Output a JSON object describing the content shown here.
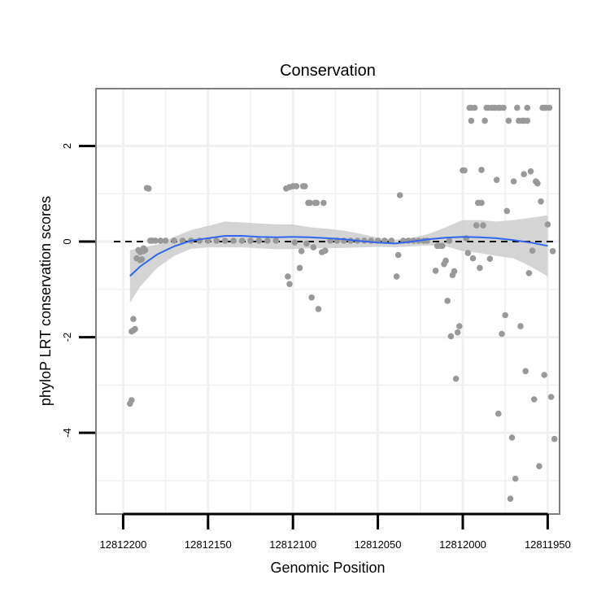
{
  "chart_data": {
    "type": "scatter",
    "title": "Conservation",
    "xlabel": "Genomic Position",
    "ylabel": "phyloP LRT conservation scores",
    "xlim": [
      12812216,
      12811943
    ],
    "ylim": [
      -5.7,
      3.2
    ],
    "x_reversed": true,
    "x_ticks": [
      12812200,
      12812150,
      12812100,
      12812050,
      12812000,
      12811950
    ],
    "x_tick_labels": [
      "12812200",
      "12812150",
      "12812100",
      "12812050",
      "12812000",
      "12811950"
    ],
    "y_ticks": [
      -4,
      -2,
      0,
      2
    ],
    "y_tick_labels": [
      "-4",
      "-2",
      "0",
      "2"
    ],
    "x_minor_grid": [
      12812175,
      12812125,
      12812075,
      12812025,
      12811975
    ],
    "y_minor_grid": [
      -5,
      -3,
      -1,
      1
    ],
    "reference_line": {
      "y": 0,
      "style": "dashed"
    },
    "point_color": "#999999",
    "smooth_color": "#3366ee",
    "ribbon_color": "#cccccc",
    "grid_color": "#f0f0f0",
    "frame_color": "#7f7f7f",
    "series": [
      {
        "name": "phyloP scores",
        "points": [
          [
            12812196,
            -3.39
          ],
          [
            12812195,
            -3.32
          ],
          [
            12812195,
            -1.88
          ],
          [
            12812194,
            -1.62
          ],
          [
            12812194,
            -1.86
          ],
          [
            12812193,
            -1.83
          ],
          [
            12812192,
            -0.35
          ],
          [
            12812191,
            -0.18
          ],
          [
            12812190,
            -0.39
          ],
          [
            12812190,
            -0.22
          ],
          [
            12812189,
            -0.37
          ],
          [
            12812188,
            -0.14
          ],
          [
            12812188,
            -0.2
          ],
          [
            12812187,
            -0.18
          ],
          [
            12812186,
            1.12
          ],
          [
            12812185,
            1.11
          ],
          [
            12812184,
            0.02
          ],
          [
            12812183,
            0.02
          ],
          [
            12812181,
            0.02
          ],
          [
            12812178,
            0.02
          ],
          [
            12812175,
            0.02
          ],
          [
            12812170,
            0.02
          ],
          [
            12812165,
            0.02
          ],
          [
            12812160,
            0.02
          ],
          [
            12812155,
            0.02
          ],
          [
            12812150,
            0.02
          ],
          [
            12812145,
            0.02
          ],
          [
            12812140,
            0.02
          ],
          [
            12812135,
            0.02
          ],
          [
            12812130,
            0.02
          ],
          [
            12812125,
            0.02
          ],
          [
            12812120,
            0.02
          ],
          [
            12812115,
            0.02
          ],
          [
            12812110,
            0.02
          ],
          [
            12812104,
            1.11
          ],
          [
            12812103,
            -0.73
          ],
          [
            12812102,
            1.14
          ],
          [
            12812102,
            -0.89
          ],
          [
            12812100,
            1.16
          ],
          [
            12812099,
            -0.02
          ],
          [
            12812098,
            1.16
          ],
          [
            12812096,
            -0.55
          ],
          [
            12812095,
            -0.2
          ],
          [
            12812094,
            1.16
          ],
          [
            12812093,
            1.16
          ],
          [
            12812092,
            -0.04
          ],
          [
            12812091,
            0.81
          ],
          [
            12812090,
            0.81
          ],
          [
            12812089,
            -1.17
          ],
          [
            12812088,
            -0.12
          ],
          [
            12812087,
            0.81
          ],
          [
            12812086,
            0.81
          ],
          [
            12812085,
            -1.41
          ],
          [
            12812083,
            -0.22
          ],
          [
            12812082,
            0.81
          ],
          [
            12812081,
            -0.19
          ],
          [
            12812078,
            0.02
          ],
          [
            12812074,
            0.02
          ],
          [
            12812070,
            0.02
          ],
          [
            12812066,
            0.02
          ],
          [
            12812062,
            0.02
          ],
          [
            12812058,
            0.02
          ],
          [
            12812054,
            0.02
          ],
          [
            12812050,
            0.02
          ],
          [
            12812046,
            0.02
          ],
          [
            12812042,
            0.02
          ],
          [
            12812039,
            -0.73
          ],
          [
            12812038,
            -0.28
          ],
          [
            12812037,
            0.97
          ],
          [
            12812035,
            0.02
          ],
          [
            12812032,
            0.02
          ],
          [
            12812029,
            0.02
          ],
          [
            12812026,
            0.02
          ],
          [
            12812023,
            0.02
          ],
          [
            12812021,
            0.02
          ],
          [
            12812016,
            -0.61
          ],
          [
            12812015,
            -0.09
          ],
          [
            12812013,
            -0.09
          ],
          [
            12812012,
            -0.09
          ],
          [
            12812011,
            -0.47
          ],
          [
            12812010,
            -0.4
          ],
          [
            12812009,
            -1.24
          ],
          [
            12812008,
            0.02
          ],
          [
            12812007,
            -1.98
          ],
          [
            12812006,
            -0.7
          ],
          [
            12812005,
            -0.62
          ],
          [
            12812004,
            -2.87
          ],
          [
            12812003,
            -1.9
          ],
          [
            12812002,
            -1.77
          ],
          [
            12812000,
            1.49
          ],
          [
            12811999,
            1.49
          ],
          [
            12811998,
            0.07
          ],
          [
            12811997,
            -0.24
          ],
          [
            12811996,
            2.8
          ],
          [
            12811995,
            2.53
          ],
          [
            12811995,
            2.8
          ],
          [
            12811994,
            -0.35
          ],
          [
            12811993,
            2.8
          ],
          [
            12811992,
            0.34
          ],
          [
            12811991,
            0.81
          ],
          [
            12811990,
            -0.55
          ],
          [
            12811989,
            1.5
          ],
          [
            12811989,
            0.81
          ],
          [
            12811988,
            0.34
          ],
          [
            12811987,
            2.53
          ],
          [
            12811986,
            2.8
          ],
          [
            12811985,
            2.8
          ],
          [
            12811984,
            -0.36
          ],
          [
            12811983,
            2.8
          ],
          [
            12811982,
            2.8
          ],
          [
            12811981,
            2.8
          ],
          [
            12811980,
            1.29
          ],
          [
            12811979,
            2.8
          ],
          [
            12811979,
            -3.6
          ],
          [
            12811978,
            2.8
          ],
          [
            12811977,
            -1.93
          ],
          [
            12811976,
            2.8
          ],
          [
            12811975,
            -1.54
          ],
          [
            12811974,
            0.64
          ],
          [
            12811973,
            2.53
          ],
          [
            12811972,
            -5.38
          ],
          [
            12811971,
            -4.1
          ],
          [
            12811970,
            1.26
          ],
          [
            12811969,
            -4.96
          ],
          [
            12811968,
            2.8
          ],
          [
            12811967,
            2.53
          ],
          [
            12811966,
            -1.77
          ],
          [
            12811965,
            2.53
          ],
          [
            12811964,
            1.41
          ],
          [
            12811964,
            2.53
          ],
          [
            12811963,
            -2.71
          ],
          [
            12811962,
            2.53
          ],
          [
            12811962,
            2.8
          ],
          [
            12811961,
            -0.66
          ],
          [
            12811960,
            1.47
          ],
          [
            12811959,
            -0.19
          ],
          [
            12811958,
            -3.3
          ],
          [
            12811957,
            1.26
          ],
          [
            12811956,
            1.22
          ],
          [
            12811955,
            -4.7
          ],
          [
            12811954,
            0.84
          ],
          [
            12811953,
            2.8
          ],
          [
            12811952,
            -2.79
          ],
          [
            12811952,
            2.8
          ],
          [
            12811951,
            2.8
          ],
          [
            12811950,
            0.36
          ],
          [
            12811949,
            2.8
          ],
          [
            12811948,
            -3.25
          ],
          [
            12811947,
            -0.2
          ],
          [
            12811946,
            -4.13
          ]
        ]
      },
      {
        "name": "loess fit",
        "points": [
          [
            12812196,
            -0.72
          ],
          [
            12812190,
            -0.52
          ],
          [
            12812180,
            -0.27
          ],
          [
            12812170,
            -0.1
          ],
          [
            12812160,
            0.02
          ],
          [
            12812150,
            0.07
          ],
          [
            12812140,
            0.12
          ],
          [
            12812130,
            0.12
          ],
          [
            12812120,
            0.1
          ],
          [
            12812110,
            0.09
          ],
          [
            12812100,
            0.1
          ],
          [
            12812090,
            0.09
          ],
          [
            12812080,
            0.07
          ],
          [
            12812070,
            0.05
          ],
          [
            12812060,
            0.01
          ],
          [
            12812050,
            -0.02
          ],
          [
            12812040,
            -0.04
          ],
          [
            12812030,
            0.0
          ],
          [
            12812020,
            0.05
          ],
          [
            12812010,
            0.08
          ],
          [
            12812000,
            0.1
          ],
          [
            12811990,
            0.09
          ],
          [
            12811980,
            0.07
          ],
          [
            12811970,
            0.03
          ],
          [
            12811960,
            -0.02
          ],
          [
            12811950,
            -0.09
          ]
        ]
      }
    ],
    "ribbon": {
      "x": [
        12812196,
        12812190,
        12812180,
        12812170,
        12812160,
        12812150,
        12812140,
        12812130,
        12812120,
        12812110,
        12812100,
        12812090,
        12812080,
        12812070,
        12812060,
        12812050,
        12812040,
        12812030,
        12812020,
        12812010,
        12812000,
        12811990,
        12811980,
        12811970,
        12811960,
        12811950
      ],
      "upper": [
        -0.18,
        -0.13,
        -0.06,
        0.1,
        0.24,
        0.33,
        0.42,
        0.4,
        0.38,
        0.36,
        0.36,
        0.3,
        0.27,
        0.23,
        0.16,
        0.08,
        0.04,
        0.08,
        0.16,
        0.3,
        0.45,
        0.45,
        0.42,
        0.45,
        0.5,
        0.55
      ],
      "lower": [
        -1.28,
        -0.94,
        -0.55,
        -0.3,
        -0.15,
        -0.12,
        -0.12,
        -0.12,
        -0.14,
        -0.16,
        -0.16,
        -0.14,
        -0.14,
        -0.13,
        -0.12,
        -0.11,
        -0.12,
        -0.1,
        -0.08,
        -0.1,
        -0.2,
        -0.24,
        -0.3,
        -0.35,
        -0.52,
        -0.73
      ]
    }
  }
}
